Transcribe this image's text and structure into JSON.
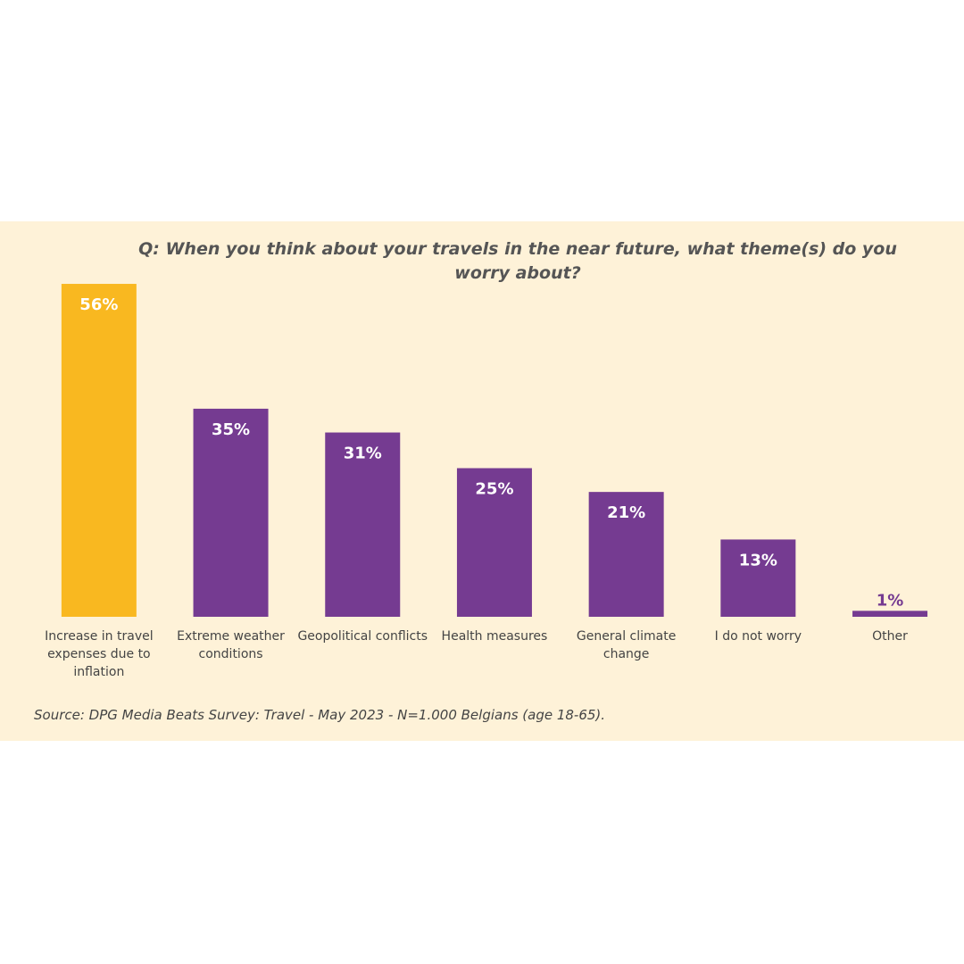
{
  "chart_data": {
    "type": "bar",
    "title": "Q: When you think about your travels in the near future, what theme(s) do you worry about?",
    "categories": [
      "Increase in travel expenses due to inflation",
      "Extreme weather conditions",
      "Geopolitical conflicts",
      "Health measures",
      "General climate change",
      "I do not worry",
      "Other"
    ],
    "values": [
      56,
      35,
      31,
      25,
      21,
      13,
      1
    ],
    "value_labels": [
      "56%",
      "35%",
      "31%",
      "25%",
      "21%",
      "13%",
      "1%"
    ],
    "colors": [
      "#f9b820",
      "#753b91",
      "#753b91",
      "#753b91",
      "#753b91",
      "#753b91",
      "#753b91"
    ],
    "source": "Source: DPG Media Beats Survey: Travel - May 2023 - N=1.000 Belgians (age 18-65)."
  }
}
